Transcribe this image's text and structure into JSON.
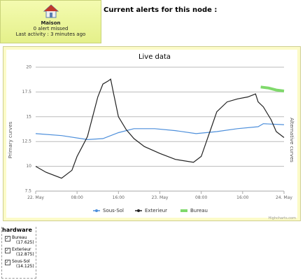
{
  "node": {
    "name": "Maison",
    "alerts": "0 alert missed",
    "activity": "Last activity : 3 minutes ago"
  },
  "heading": "Current alerts for this node :",
  "chart_data": {
    "type": "line",
    "title": "Live data",
    "y_label": "Primary curves",
    "y2_label": "Alternative curves",
    "ylim": [
      7.5,
      20
    ],
    "yticks": [
      7.5,
      10,
      {
        "value": 12.5,
        "label": "12.5"
      },
      15,
      {
        "value": 17.5,
        "label": "17.5"
      },
      20
    ],
    "xlim": [
      0,
      48
    ],
    "xticks": [
      {
        "value": 0,
        "label": "22. May"
      },
      {
        "value": 8,
        "label": "08:00"
      },
      {
        "value": 16,
        "label": "16:00"
      },
      {
        "value": 24,
        "label": "23. May"
      },
      {
        "value": 32,
        "label": "08:00"
      },
      {
        "value": 40,
        "label": "16:00"
      },
      {
        "value": 48,
        "label": "24. May"
      }
    ],
    "grid": true,
    "legend": "bottom",
    "credits": "Highcharts.com",
    "series": [
      {
        "name": "Sous-Sol",
        "color": "#4d8fdb",
        "x": [
          0,
          5,
          10,
          13,
          16,
          19,
          23,
          27,
          31,
          35,
          39,
          43,
          44,
          48
        ],
        "values": [
          13.3,
          13.1,
          12.7,
          12.8,
          13.4,
          13.8,
          13.8,
          13.6,
          13.3,
          13.5,
          13.8,
          14.0,
          14.3,
          14.2
        ]
      },
      {
        "name": "Exterieur",
        "color": "#222222",
        "x": [
          0,
          2,
          5,
          7,
          8,
          9,
          10,
          11,
          12,
          13,
          14,
          14.5,
          15,
          16,
          17.5,
          19,
          21,
          24,
          27,
          30.5,
          32,
          33,
          34,
          35,
          37,
          39,
          41,
          42.5,
          43,
          44,
          45.5,
          46.5,
          48
        ],
        "values": [
          10,
          9.4,
          8.8,
          9.6,
          11,
          12,
          13,
          15,
          17,
          18.3,
          18.6,
          18.8,
          17.5,
          15,
          13.7,
          12.8,
          12,
          11.3,
          10.7,
          10.4,
          11,
          12.5,
          14,
          15.5,
          16.5,
          16.8,
          17,
          17.3,
          16.5,
          16,
          14.7,
          13.5,
          12.9
        ]
      },
      {
        "name": "Bureau",
        "color": "#7fd96b",
        "x": [
          43.5,
          45,
          46.5,
          48
        ],
        "values": [
          18.0,
          17.9,
          17.7,
          17.6
        ]
      }
    ]
  },
  "hardware": {
    "title": "hardware",
    "items": [
      {
        "label": "Bureau",
        "value": "(17.625)"
      },
      {
        "label": "Exterieur",
        "value": "(12.875)"
      },
      {
        "label": "Sous-Sol",
        "value": "(14.125)"
      }
    ]
  }
}
